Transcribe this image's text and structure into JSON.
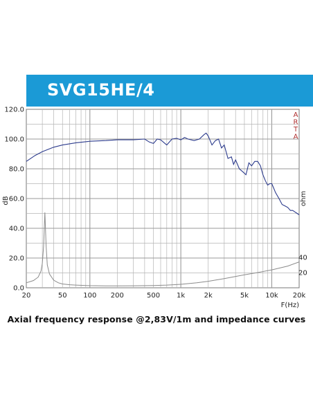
{
  "product_title": "SVG15HE/4",
  "caption": "Axial frequency response @2,83V/1m and impedance curves",
  "watermark": [
    "A",
    "R",
    "T",
    "A"
  ],
  "colors": {
    "banner": "#1b9ad6",
    "spl_curve": "#2b3a8c",
    "impedance_curve": "#8a8a8a",
    "grid": "#b5b5b5",
    "watermark": "#b03030"
  },
  "chart_data": {
    "type": "line",
    "xlabel": "F(Hz)",
    "ylabel": "dB",
    "ylabel_right": "ohm",
    "x_scale": "log",
    "xlim": [
      20,
      20000
    ],
    "ylim": [
      0,
      120
    ],
    "y_ticks": [
      "0.0",
      "20.0",
      "40.0",
      "60.0",
      "80.0",
      "100.0",
      "120.0"
    ],
    "y2_ticks": [
      "20",
      "40"
    ],
    "x_ticks": [
      "20",
      "50",
      "100",
      "200",
      "500",
      "1k",
      "2k",
      "5k",
      "10k",
      "20k"
    ],
    "grid": true,
    "series": [
      {
        "kind": "spl",
        "x": [
          20,
          25,
          30,
          40,
          50,
          70,
          100,
          150,
          200,
          300,
          400,
          450,
          500,
          550,
          600,
          700,
          800,
          900,
          1000,
          1100,
          1200,
          1400,
          1600,
          1800,
          1900,
          2000,
          2200,
          2400,
          2600,
          2800,
          3000,
          3300,
          3600,
          3800,
          4000,
          4400,
          4800,
          5200,
          5600,
          6000,
          6500,
          7000,
          7500,
          8000,
          8500,
          9000,
          9500,
          10000,
          10500,
          11000,
          12000,
          13000,
          14000,
          15000,
          16000,
          17000,
          18000,
          19000,
          20000
        ],
        "values": [
          85,
          89,
          91.5,
          94.5,
          96,
          97.5,
          98.5,
          99,
          99.5,
          99.5,
          100,
          98,
          97,
          100,
          99.5,
          96,
          100,
          100.5,
          99.5,
          101,
          100,
          99,
          100,
          103,
          104,
          102,
          96,
          99,
          100,
          94,
          96,
          87,
          88,
          83,
          86,
          80,
          78,
          76,
          84,
          82,
          85,
          85,
          82,
          76,
          72,
          69,
          70,
          70,
          67,
          64,
          60,
          56,
          55,
          54,
          52,
          52,
          51,
          50,
          49
        ]
      },
      {
        "kind": "impedance",
        "x": [
          20,
          24,
          27,
          29,
          30,
          31,
          32,
          33,
          34,
          36,
          40,
          45,
          50,
          60,
          70,
          100,
          150,
          200,
          300,
          500,
          700,
          1000,
          1500,
          2000,
          3000,
          5000,
          7000,
          10000,
          15000,
          20000
        ],
        "values": [
          6.5,
          9.5,
          14,
          22,
          32,
          55,
          99,
          55,
          30,
          18,
          10,
          6.5,
          5,
          4,
          3.5,
          2.8,
          2.5,
          2.5,
          2.6,
          3,
          3.5,
          4.5,
          6.5,
          8.5,
          12,
          17,
          20,
          23.5,
          28.5,
          34
        ]
      }
    ]
  }
}
